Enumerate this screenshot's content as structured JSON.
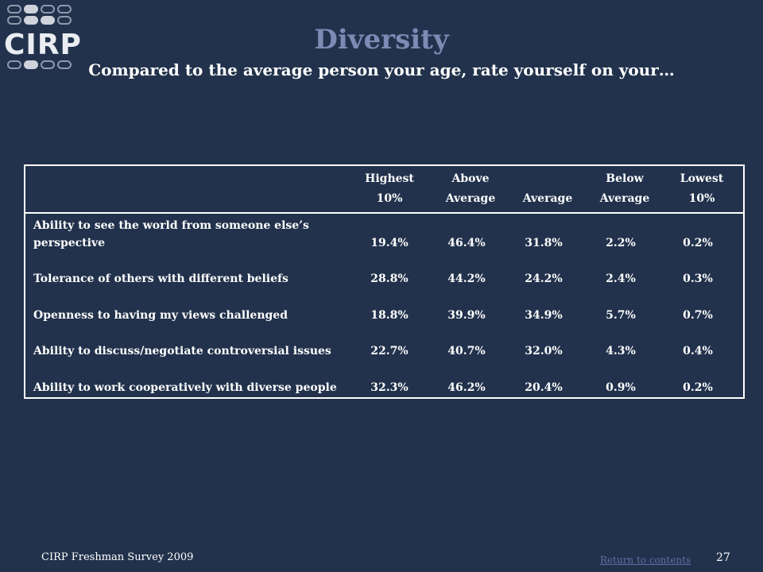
{
  "logo": {
    "text": "CIRP",
    "icon": "cirp-logo-dots"
  },
  "title": "Diversity",
  "subtitle": "Compared to the average person your age, rate yourself on your…",
  "table": {
    "headers": [
      {
        "line1": "Highest",
        "line2": "10%"
      },
      {
        "line1": "Above",
        "line2": "Average"
      },
      {
        "line1": "",
        "line2": "Average"
      },
      {
        "line1": "Below",
        "line2": "Average"
      },
      {
        "line1": "Lowest",
        "line2": "10%"
      }
    ],
    "rows": [
      {
        "label": "Ability to see the world from someone else’s perspective",
        "values": [
          "19.4%",
          "46.4%",
          "31.8%",
          "2.2%",
          "0.2%"
        ]
      },
      {
        "label": "Tolerance of others with different beliefs",
        "values": [
          "28.8%",
          "44.2%",
          "24.2%",
          "2.4%",
          "0.3%"
        ]
      },
      {
        "label": "Openness to having my views challenged",
        "values": [
          "18.8%",
          "39.9%",
          "34.9%",
          "5.7%",
          "0.7%"
        ]
      },
      {
        "label": "Ability to discuss/negotiate controversial issues",
        "values": [
          "22.7%",
          "40.7%",
          "32.0%",
          "4.3%",
          "0.4%"
        ]
      },
      {
        "label": "Ability to work cooperatively with diverse people",
        "values": [
          "32.3%",
          "46.2%",
          "20.4%",
          "0.9%",
          "0.2%"
        ]
      }
    ]
  },
  "footer": {
    "source": "CIRP Freshman Survey 2009",
    "return_link": "Return to contents",
    "page_number": "27"
  },
  "colors": {
    "background": "#22324c",
    "title": "#7b8bb4",
    "link": "#5f6fa3"
  }
}
